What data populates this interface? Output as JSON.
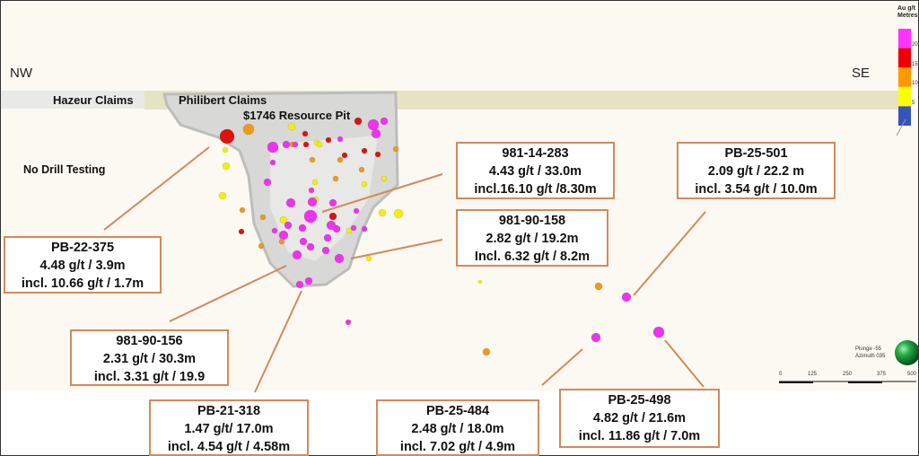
{
  "directions": {
    "left": "NW",
    "right": "SE"
  },
  "labels": {
    "hazeur": "Hazeur Claims",
    "philibert": "Philibert Claims",
    "pit": "$1746 Resource Pit",
    "no_drill": "No Drill Testing"
  },
  "legend": {
    "title_line1": "Au g/t",
    "title_line2": "Metres",
    "bins": [
      {
        "color": "#ff33ff"
      },
      {
        "color": "#ee0000"
      },
      {
        "color": "#ff9900"
      },
      {
        "color": "#ffff00"
      },
      {
        "color": "#3355bb"
      }
    ],
    "ticks": [
      "20",
      "15",
      "10",
      "5"
    ]
  },
  "orientation": {
    "plunge": "Plunge -55",
    "azimuth": "Azimuth 035"
  },
  "scale_bar": {
    "ticks": [
      "0",
      "125",
      "250",
      "375",
      "500"
    ]
  },
  "callouts": [
    {
      "hole": "PB-22-375",
      "line1": "4.48 g/t  / 3.9m",
      "line2": "incl. 10.66 g/t / 1.7m"
    },
    {
      "hole": "981-14-283",
      "line1": "4.43 g/t / 33.0m",
      "line2": "incl.16.10 g/t /8.30m"
    },
    {
      "hole": "981-90-158",
      "line1": "2.82 g/t / 19.2m",
      "line2": "Incl. 6.32 g/t / 8.2m"
    },
    {
      "hole": "PB-25-501",
      "line1": "2.09 g/t / 22.2 m",
      "line2": "incl. 3.54 g/t / 10.0m"
    },
    {
      "hole": "981-90-156",
      "line1": "2.31 g/t  / 30.3m",
      "line2": "incl. 3.31 g/t / 19.9"
    },
    {
      "hole": "PB-21-318",
      "line1": "1.47 g/t/ 17.0m",
      "line2": "incl. 4.54 g/t / 4.58m"
    },
    {
      "hole": "PB-25-484",
      "line1": "2.48 g/t  / 18.0m",
      "line2": "incl. 7.02 g/t / 4.9m"
    },
    {
      "hole": "PB-25-498",
      "line1": "4.82 g/t / 21.6m",
      "line2": "incl. 11.86 g/t / 7.0m"
    }
  ],
  "colors": {
    "callout_border": "#d4895a",
    "claims_band": "#e6e3c4",
    "pit_shell": "#c9c9c9"
  }
}
